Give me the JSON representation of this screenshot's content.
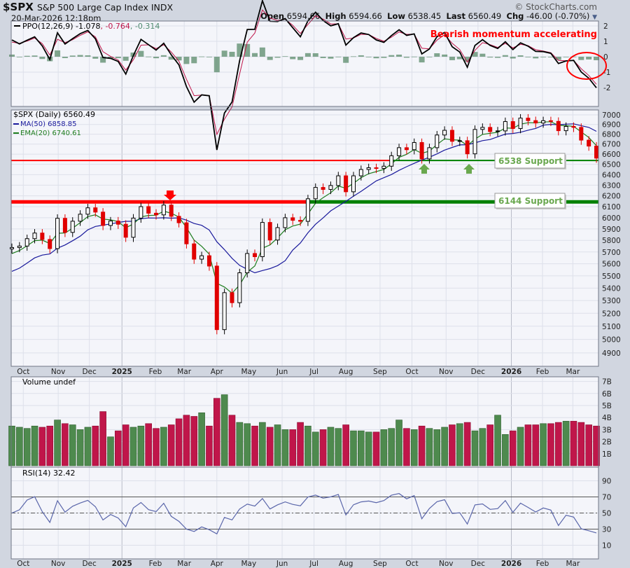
{
  "header": {
    "symbol": "$SPX",
    "name": "S&P 500 Large Cap Index",
    "exchange": "INDX",
    "datetime": "20-Mar-2026 12:18pm",
    "credit": "© StockCharts.com",
    "open_label": "Open",
    "open": "6594.66",
    "high_label": "High",
    "high": "6594.66",
    "low_label": "Low",
    "low": "6538.45",
    "last_label": "Last",
    "last": "6560.49",
    "chg_label": "Chg",
    "chg": "-46.00 (-0.70%)",
    "chg_icon": "triangle-down-icon"
  },
  "colors": {
    "up": "#000000",
    "down": "#e00000",
    "ma50": "#1a1a9c",
    "ema20": "#1e7d1e",
    "vol_up": "#4e8a4e",
    "vol_down": "#c0164a",
    "ppo_line": "#000000",
    "ppo_signal": "#c0164a",
    "ppo_hist": "#5a8a6a",
    "rsi": "#5a66aa",
    "annotation": "#ff0000",
    "support": "#008000"
  },
  "labels": {
    "ppo": "PPO(12,26,9) -1.078",
    "ppo_signal": ", -0.764",
    "ppo_hist": ", -0.314",
    "price": "$SPX (Daily) 6560.49",
    "ma50": "MA(50) 6858.85",
    "ema20": "EMA(20) 6740.61",
    "volume": "Volume undef",
    "rsi": "RSI(14) 32.42",
    "bearish": "Bearish momentum accelerating",
    "support1": "6538 Support",
    "support2": "6144 Support"
  },
  "chart_data": [
    {
      "type": "candlestick",
      "title": "$SPX (Daily) 6560.49",
      "y_scale": "log",
      "ylim": [
        4850,
        7050
      ],
      "y_ticks": [
        "7000",
        "6900",
        "6800",
        "6700",
        "6600",
        "6500",
        "6400",
        "6300",
        "6200",
        "6100",
        "6000",
        "5900",
        "5800",
        "5700",
        "5600",
        "5500",
        "5400",
        "5300",
        "5200",
        "5100",
        "5000",
        "4900"
      ],
      "x_ticks": [
        "Oct",
        "Nov",
        "Dec",
        "2025",
        "Feb",
        "Mar",
        "Apr",
        "May",
        "Jun",
        "Jul",
        "Aug",
        "Sep",
        "Oct",
        "Nov",
        "Dec",
        "2026",
        "Feb",
        "Mar"
      ],
      "grid": true,
      "dates": [
        "2024-09-27",
        "2024-10-04",
        "2024-10-11",
        "2024-10-18",
        "2024-10-25",
        "2024-11-01",
        "2024-11-08",
        "2024-11-15",
        "2024-11-22",
        "2024-11-29",
        "2024-12-06",
        "2024-12-13",
        "2024-12-20",
        "2024-12-27",
        "2025-01-03",
        "2025-01-10",
        "2025-01-17",
        "2025-01-24",
        "2025-01-31",
        "2025-02-07",
        "2025-02-14",
        "2025-02-21",
        "2025-02-28",
        "2025-03-07",
        "2025-03-14",
        "2025-03-21",
        "2025-03-28",
        "2025-04-04",
        "2025-04-11",
        "2025-04-17",
        "2025-04-25",
        "2025-05-02",
        "2025-05-09",
        "2025-05-16",
        "2025-05-23",
        "2025-05-30",
        "2025-06-06",
        "2025-06-13",
        "2025-06-20",
        "2025-06-27",
        "2025-07-03",
        "2025-07-11",
        "2025-07-18",
        "2025-07-25",
        "2025-08-01",
        "2025-08-08",
        "2025-08-15",
        "2025-08-22",
        "2025-08-29",
        "2025-09-05",
        "2025-09-12",
        "2025-09-19",
        "2025-09-26",
        "2025-10-03",
        "2025-10-10",
        "2025-10-17",
        "2025-10-24",
        "2025-10-31",
        "2025-11-07",
        "2025-11-14",
        "2025-11-21",
        "2025-11-28",
        "2025-12-05",
        "2025-12-12",
        "2025-12-19",
        "2025-12-26",
        "2026-01-02",
        "2026-01-09",
        "2026-01-16",
        "2026-01-23",
        "2026-01-30",
        "2026-02-06",
        "2026-02-13",
        "2026-02-20",
        "2026-02-27",
        "2026-03-06",
        "2026-03-13",
        "2026-03-20"
      ],
      "close": [
        5738,
        5751,
        5815,
        5864,
        5808,
        5729,
        5995,
        5870,
        5969,
        6032,
        6090,
        6051,
        5931,
        5971,
        5942,
        5827,
        5997,
        6101,
        6041,
        6026,
        6115,
        6013,
        5955,
        5770,
        5639,
        5668,
        5581,
        5074,
        5363,
        5283,
        5525,
        5687,
        5660,
        5958,
        5803,
        5912,
        6000,
        5977,
        5968,
        6173,
        6279,
        6260,
        6297,
        6389,
        6238,
        6389,
        6450,
        6467,
        6460,
        6482,
        6584,
        6664,
        6644,
        6716,
        6553,
        6664,
        6792,
        6840,
        6728,
        6734,
        6603,
        6849,
        6870,
        6827,
        6834,
        6930,
        6858,
        6966,
        6940,
        6915,
        6939,
        6932,
        6836,
        6880,
        6870,
        6740,
        6680,
        6560.49
      ],
      "series": [
        {
          "name": "MA(50)"
        },
        {
          "name": "EMA(20)"
        }
      ],
      "horizontal_lines": [
        {
          "label": "6538 Support",
          "value": 6538
        },
        {
          "label": "6144 Support",
          "value": 6144
        }
      ],
      "annotations": [
        "red arrow at Feb 2025 peak",
        "green arrows at Oct 2025 and Nov 2025 lows"
      ]
    },
    {
      "type": "line",
      "title": "PPO(12,26,9) -1.078, -0.764, -0.314",
      "ylim": [
        -3.2,
        2.3
      ],
      "y_ticks": [
        "2",
        "1",
        "0",
        "-1",
        "-2"
      ],
      "annotation": "Bearish momentum accelerating"
    },
    {
      "type": "bar",
      "title": "Volume undef",
      "y_ticks": [
        "7B",
        "6B",
        "5B",
        "4B",
        "3B",
        "2B",
        "1B"
      ],
      "ylim": [
        0,
        7.3
      ],
      "values_billions": [
        3.3,
        3.2,
        3.1,
        3.3,
        3.2,
        3.3,
        3.8,
        3.5,
        3.4,
        3.0,
        3.2,
        3.3,
        4.5,
        2.4,
        2.9,
        3.4,
        3.2,
        3.3,
        3.5,
        3.1,
        3.2,
        3.4,
        3.9,
        4.2,
        4.1,
        4.4,
        3.3,
        5.6,
        5.9,
        4.2,
        3.6,
        3.5,
        3.3,
        3.6,
        3.2,
        3.4,
        3.0,
        3.0,
        3.6,
        3.3,
        2.8,
        3.0,
        3.2,
        3.1,
        3.4,
        2.9,
        2.9,
        2.8,
        2.8,
        3.0,
        3.1,
        3.8,
        3.1,
        3.0,
        3.3,
        3.1,
        3.0,
        3.2,
        3.4,
        3.5,
        3.6,
        2.9,
        3.1,
        3.4,
        4.2,
        2.6,
        2.9,
        3.2,
        3.4,
        3.4,
        3.5,
        3.5,
        3.6,
        3.7,
        3.7,
        3.6,
        3.4,
        3.3
      ]
    },
    {
      "type": "line",
      "title": "RSI(14) 32.42",
      "ylim": [
        0,
        100
      ],
      "y_ticks": [
        "90",
        "70",
        "50",
        "30",
        "10"
      ],
      "reference_lines": [
        70,
        50,
        30
      ]
    }
  ]
}
